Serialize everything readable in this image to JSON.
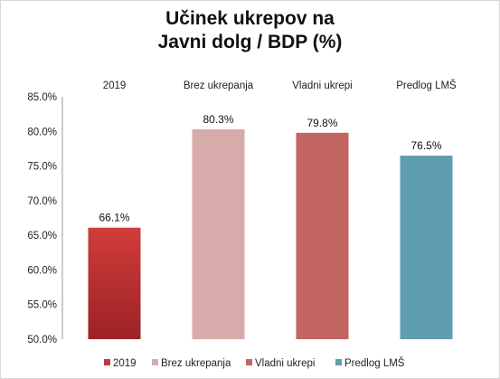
{
  "chart_data": {
    "type": "bar",
    "title": [
      "Učinek ukrepov na",
      "Javni dolg / BDP (%)"
    ],
    "categories": [
      "2019",
      "Brez ukrepanja",
      "Vladni ukrepi",
      "Predlog LMŠ"
    ],
    "values": [
      66.1,
      80.3,
      79.8,
      76.5
    ],
    "data_labels": [
      "66.1%",
      "80.3%",
      "79.8%",
      "76.5%"
    ],
    "colors": [
      "#c4393b",
      "#d8abab",
      "#c26563",
      "#5f9db1"
    ],
    "legend": [
      "2019",
      "Brez ukrepanja",
      "Vladni ukrepi",
      "Predlog LMŠ"
    ],
    "legend_position": "bottom",
    "category_labels_position": "top",
    "ylim": [
      50,
      85
    ],
    "yticks": [
      50,
      55,
      60,
      65,
      70,
      75,
      80,
      85
    ],
    "ytick_labels": [
      "50.0%",
      "55.0%",
      "60.0%",
      "65.0%",
      "70.0%",
      "75.0%",
      "80.0%",
      "85.0%"
    ],
    "grid": false
  }
}
